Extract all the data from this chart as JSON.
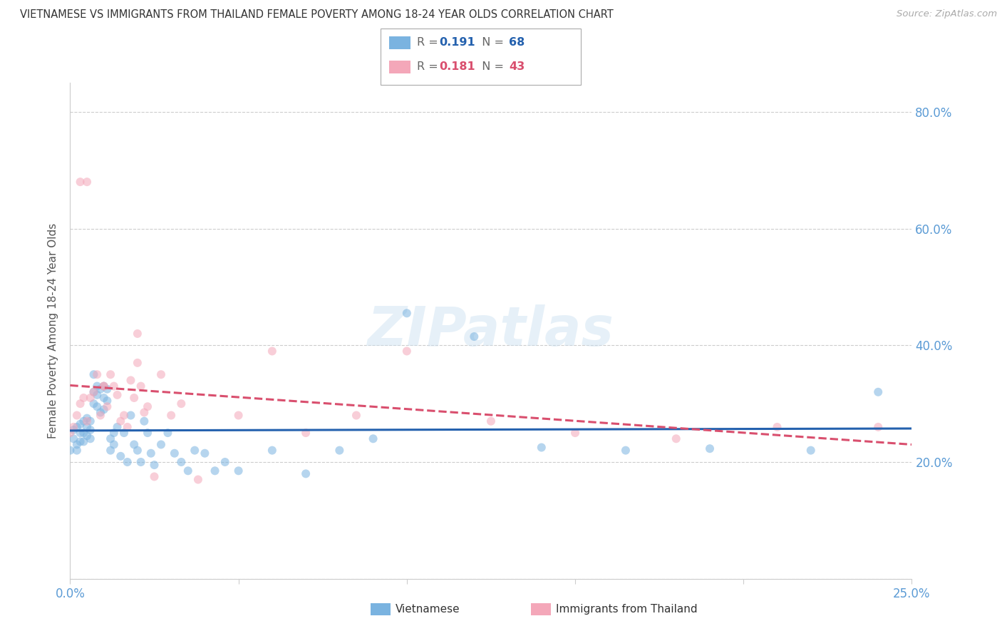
{
  "title": "VIETNAMESE VS IMMIGRANTS FROM THAILAND FEMALE POVERTY AMONG 18-24 YEAR OLDS CORRELATION CHART",
  "source": "Source: ZipAtlas.com",
  "ylabel": "Female Poverty Among 18-24 Year Olds",
  "title_fontsize": 10.5,
  "source_fontsize": 9.5,
  "blue_color": "#7ab3e0",
  "blue_line_color": "#2461ae",
  "pink_color": "#f4a7b9",
  "pink_line_color": "#d94f6e",
  "axis_label_color": "#5b9bd5",
  "background_color": "#ffffff",
  "watermark": "ZIPatlas",
  "viet_R": 0.191,
  "viet_N": 68,
  "thai_R": 0.181,
  "thai_N": 43,
  "viet_x": [
    0.0,
    0.001,
    0.001,
    0.002,
    0.002,
    0.002,
    0.003,
    0.003,
    0.003,
    0.004,
    0.004,
    0.004,
    0.005,
    0.005,
    0.005,
    0.006,
    0.006,
    0.006,
    0.007,
    0.007,
    0.007,
    0.008,
    0.008,
    0.008,
    0.009,
    0.009,
    0.01,
    0.01,
    0.01,
    0.011,
    0.011,
    0.012,
    0.012,
    0.013,
    0.013,
    0.014,
    0.015,
    0.016,
    0.017,
    0.018,
    0.019,
    0.02,
    0.021,
    0.022,
    0.023,
    0.024,
    0.025,
    0.027,
    0.029,
    0.031,
    0.033,
    0.035,
    0.037,
    0.04,
    0.043,
    0.046,
    0.05,
    0.06,
    0.07,
    0.08,
    0.09,
    0.1,
    0.12,
    0.14,
    0.165,
    0.19,
    0.22,
    0.24
  ],
  "viet_y": [
    0.22,
    0.24,
    0.255,
    0.26,
    0.23,
    0.22,
    0.265,
    0.25,
    0.235,
    0.27,
    0.25,
    0.235,
    0.275,
    0.26,
    0.245,
    0.27,
    0.255,
    0.24,
    0.35,
    0.32,
    0.3,
    0.33,
    0.315,
    0.295,
    0.325,
    0.285,
    0.33,
    0.31,
    0.29,
    0.325,
    0.305,
    0.24,
    0.22,
    0.25,
    0.23,
    0.26,
    0.21,
    0.25,
    0.2,
    0.28,
    0.23,
    0.22,
    0.2,
    0.27,
    0.25,
    0.215,
    0.195,
    0.23,
    0.25,
    0.215,
    0.2,
    0.185,
    0.22,
    0.215,
    0.185,
    0.2,
    0.185,
    0.22,
    0.18,
    0.22,
    0.24,
    0.455,
    0.415,
    0.225,
    0.22,
    0.223,
    0.22,
    0.32
  ],
  "thai_x": [
    0.0,
    0.001,
    0.002,
    0.003,
    0.004,
    0.005,
    0.006,
    0.007,
    0.008,
    0.009,
    0.01,
    0.011,
    0.012,
    0.013,
    0.014,
    0.015,
    0.016,
    0.017,
    0.018,
    0.019,
    0.02,
    0.021,
    0.022,
    0.023,
    0.025,
    0.027,
    0.03,
    0.033,
    0.038,
    0.05,
    0.06,
    0.07,
    0.085,
    0.1,
    0.125,
    0.15,
    0.18,
    0.21,
    0.24,
    0.003,
    0.005,
    0.01,
    0.02
  ],
  "thai_y": [
    0.25,
    0.26,
    0.28,
    0.3,
    0.31,
    0.27,
    0.31,
    0.32,
    0.35,
    0.28,
    0.33,
    0.295,
    0.35,
    0.33,
    0.315,
    0.27,
    0.28,
    0.26,
    0.34,
    0.31,
    0.37,
    0.33,
    0.285,
    0.295,
    0.175,
    0.35,
    0.28,
    0.3,
    0.17,
    0.28,
    0.39,
    0.25,
    0.28,
    0.39,
    0.27,
    0.25,
    0.24,
    0.26,
    0.26,
    0.68,
    0.68,
    0.33,
    0.42
  ],
  "xlim": [
    0.0,
    0.25
  ],
  "ylim": [
    0.0,
    0.85
  ],
  "yticks": [
    0.0,
    0.2,
    0.4,
    0.6,
    0.8
  ],
  "ytick_labels": [
    "",
    "20.0%",
    "40.0%",
    "60.0%",
    "80.0%"
  ],
  "xtick_positions": [
    0.0,
    0.05,
    0.1,
    0.15,
    0.2,
    0.25
  ],
  "xtick_labels": [
    "0.0%",
    "",
    "",
    "",
    "",
    "25.0%"
  ],
  "grid_color": "#cccccc",
  "marker_size": 75,
  "marker_alpha": 0.55,
  "line_width": 2.2
}
